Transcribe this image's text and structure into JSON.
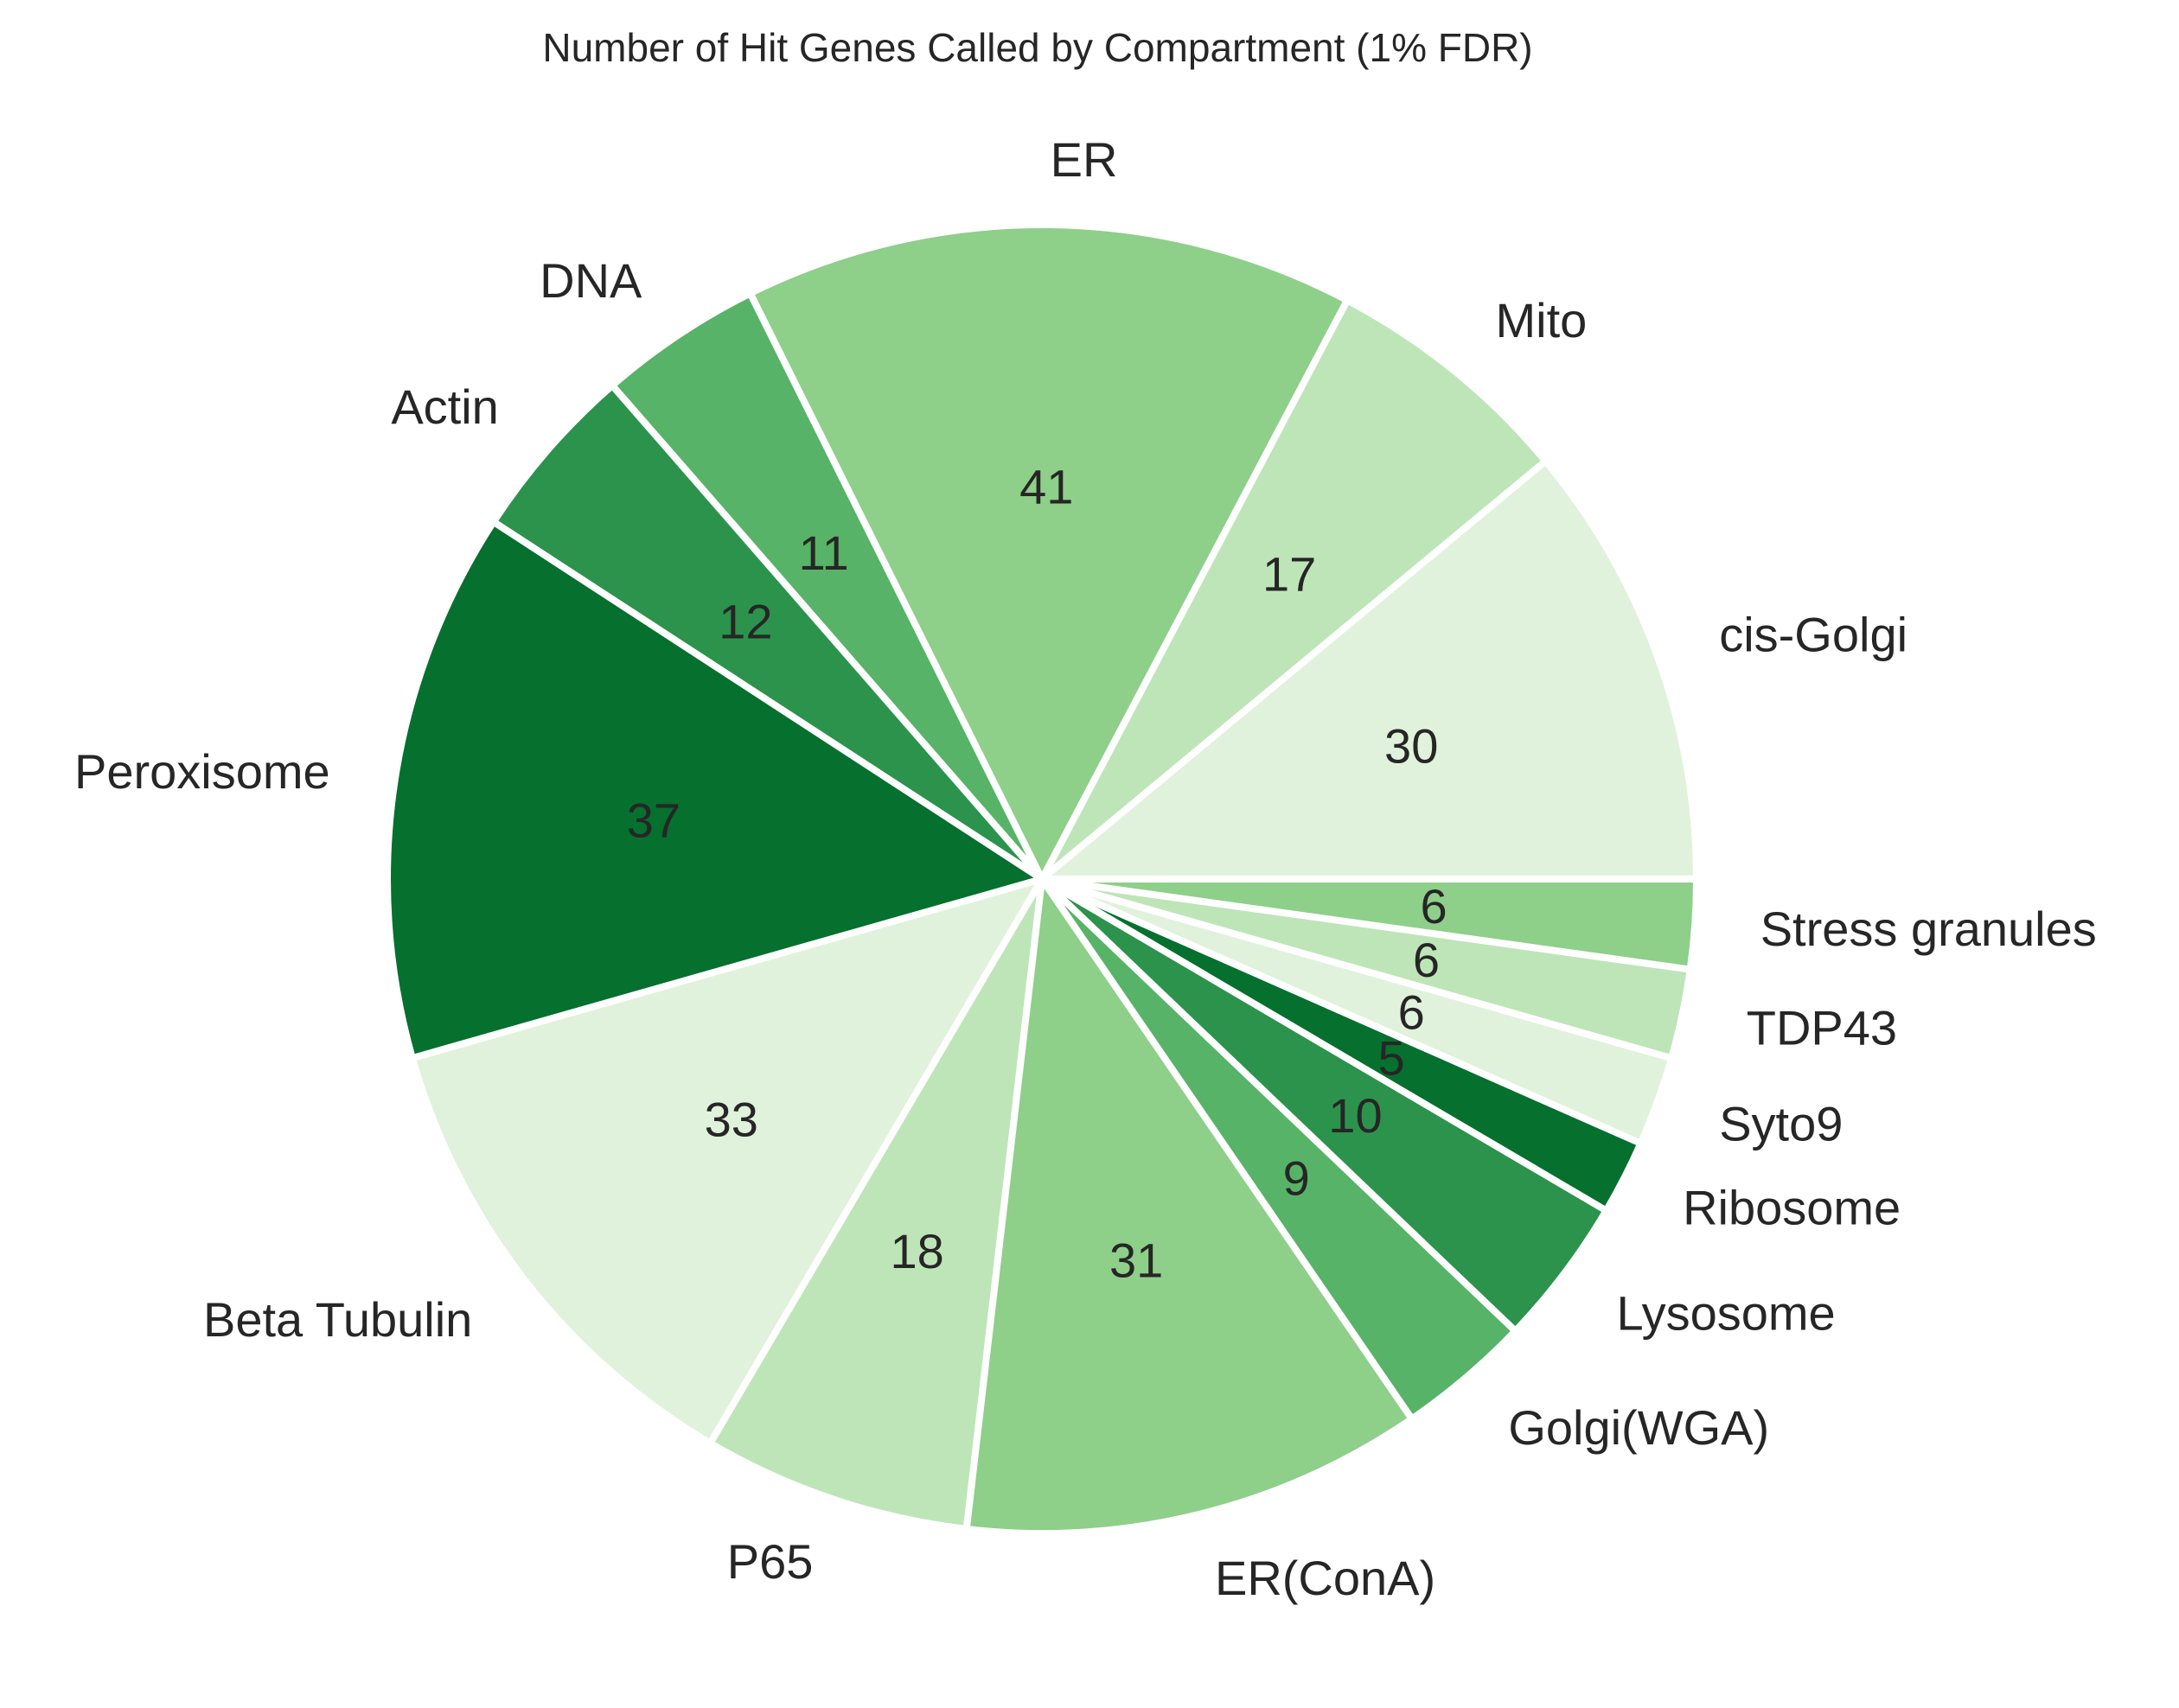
{
  "chart_data": {
    "type": "pie",
    "title": "Number of Hit Genes Called by Compartment (1% FDR)",
    "categories": [
      "cis-Golgi",
      "Mito",
      "ER",
      "DNA",
      "Actin",
      "Peroxisome",
      "Beta Tubulin",
      "P65",
      "ER(ConA)",
      "Golgi(WGA)",
      "Lysosome",
      "Ribosome",
      "Syto9",
      "TDP43",
      "Stress granules"
    ],
    "values": [
      30,
      17,
      41,
      11,
      12,
      37,
      33,
      18,
      31,
      9,
      10,
      5,
      6,
      6,
      6
    ],
    "value_labels": [
      "30",
      "17",
      "41",
      "11",
      "12",
      "37",
      "33",
      "18",
      "31",
      "9",
      "10",
      "5",
      "6",
      "6",
      "6"
    ],
    "colors": [
      "#e0f2db",
      "#bee5b8",
      "#8ecf8a",
      "#57b367",
      "#2c934c",
      "#06702e",
      "#e0f2db",
      "#bee5b8",
      "#8ecf8a",
      "#57b367",
      "#2c934c",
      "#06702e",
      "#e0f2db",
      "#bee5b8",
      "#8ecf8a"
    ],
    "start_angle": "0 degrees (east)",
    "direction": "counterclockwise",
    "slice_edge_color": "#ffffff"
  }
}
